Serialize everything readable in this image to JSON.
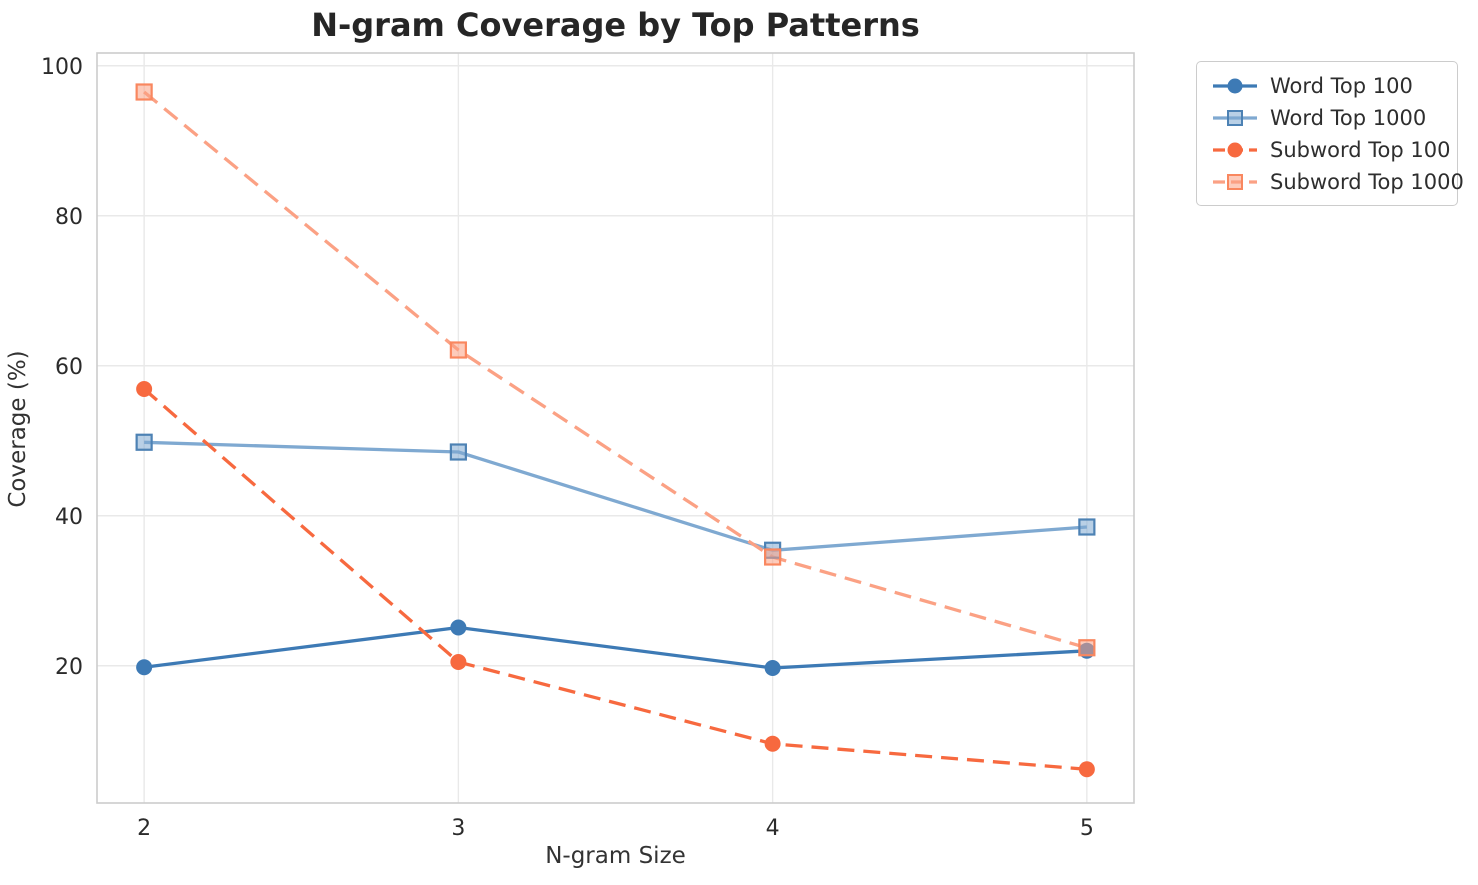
{
  "chart_data": {
    "type": "line",
    "title": "N-gram Coverage by Top Patterns",
    "xlabel": "N-gram Size",
    "ylabel": "Coverage (%)",
    "x": [
      2,
      3,
      4,
      5
    ],
    "xtick_labels": [
      "2",
      "3",
      "4",
      "5"
    ],
    "yticks": [
      20,
      40,
      60,
      80,
      100
    ],
    "ytick_labels": [
      "20",
      "40",
      "60",
      "80",
      "100"
    ],
    "xlim": [
      1.85,
      5.15
    ],
    "ylim": [
      1.7,
      101.7
    ],
    "grid": true,
    "legend": {
      "position": "upper-right-outside",
      "entries": [
        "Word Top 100",
        "Word Top 1000",
        "Subword Top 100",
        "Subword Top 1000"
      ]
    },
    "series": [
      {
        "name": "Word Top 100",
        "color": "#3d7ab5",
        "edge": "#35699c",
        "marker": "circle",
        "linestyle": "solid",
        "values": [
          19.8,
          25.1,
          19.7,
          22.0
        ]
      },
      {
        "name": "Word Top 1000",
        "color": "#7fa9d1",
        "edge": "#4d82b4",
        "marker": "square",
        "linestyle": "solid",
        "values": [
          49.8,
          48.5,
          35.4,
          38.5
        ]
      },
      {
        "name": "Subword Top 100",
        "color": "#f7693f",
        "edge": "#e05a31",
        "marker": "circle",
        "linestyle": "dashed",
        "values": [
          56.9,
          20.5,
          9.6,
          6.2
        ]
      },
      {
        "name": "Subword Top 1000",
        "color": "#fba184",
        "edge": "#f9875f",
        "marker": "square",
        "linestyle": "dashed",
        "values": [
          96.5,
          62.1,
          34.5,
          22.4
        ]
      }
    ],
    "colors": {
      "background": "#ffffff",
      "grid": "#e9e9e9",
      "spine": "#cccccc",
      "tick_label": "#2b2b2b",
      "title": "#262626",
      "axis_label": "#333333",
      "legend_border": "#cccccc",
      "legend_text": "#2e2e2e"
    }
  }
}
